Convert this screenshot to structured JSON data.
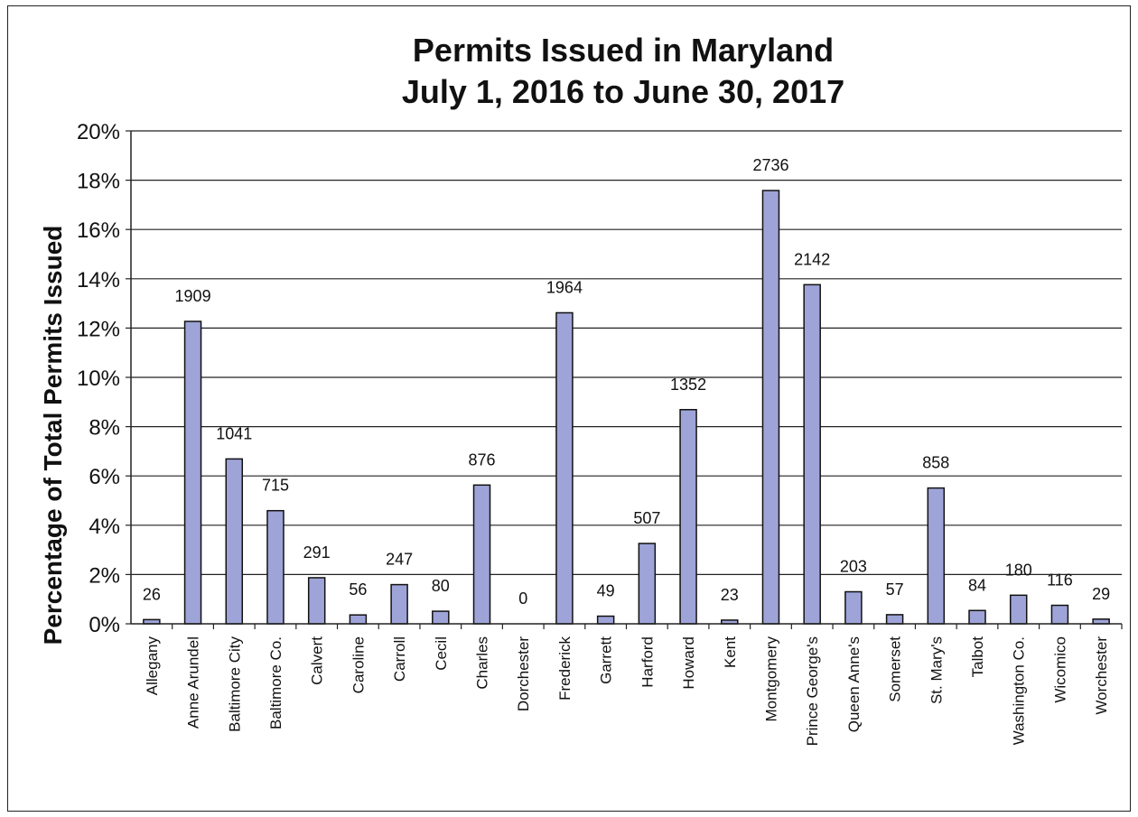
{
  "chart_data": {
    "type": "bar",
    "title": "Permits Issued in Maryland",
    "subtitle": "July 1, 2016 to June 30, 2017",
    "xlabel": "",
    "ylabel": "Percentage of Total Permits Issued",
    "ylim": [
      0,
      20
    ],
    "y_ticks": [
      "0%",
      "2%",
      "4%",
      "6%",
      "8%",
      "10%",
      "12%",
      "14%",
      "16%",
      "18%",
      "20%"
    ],
    "grid": true,
    "legend": "none",
    "bar_color": "#9ea4d8",
    "categories": [
      "Allegany",
      "Anne Arundel",
      "Baltimore City",
      "Baltimore Co.",
      "Calvert",
      "Caroline",
      "Carroll",
      "Cecil",
      "Charles",
      "Dorchester",
      "Frederick",
      "Garrett",
      "Harford",
      "Howard",
      "Kent",
      "Montgomery",
      "Prince George's",
      "Queen Anne's",
      "Somerset",
      "St. Mary's",
      "Talbot",
      "Washington Co.",
      "Wicomico",
      "Worchester"
    ],
    "values": [
      0.17,
      12.27,
      6.69,
      4.59,
      1.87,
      0.36,
      1.59,
      0.51,
      5.63,
      0.0,
      12.62,
      0.31,
      3.26,
      8.69,
      0.15,
      17.58,
      13.76,
      1.3,
      0.37,
      5.51,
      0.54,
      1.16,
      0.75,
      0.19
    ],
    "data_labels": [
      "26",
      "1909",
      "1041",
      "715",
      "291",
      "56",
      "247",
      "80",
      "876",
      "0",
      "1964",
      "49",
      "507",
      "1352",
      "23",
      "2736",
      "2142",
      "203",
      "57",
      "858",
      "84",
      "180",
      "116",
      "29"
    ]
  }
}
